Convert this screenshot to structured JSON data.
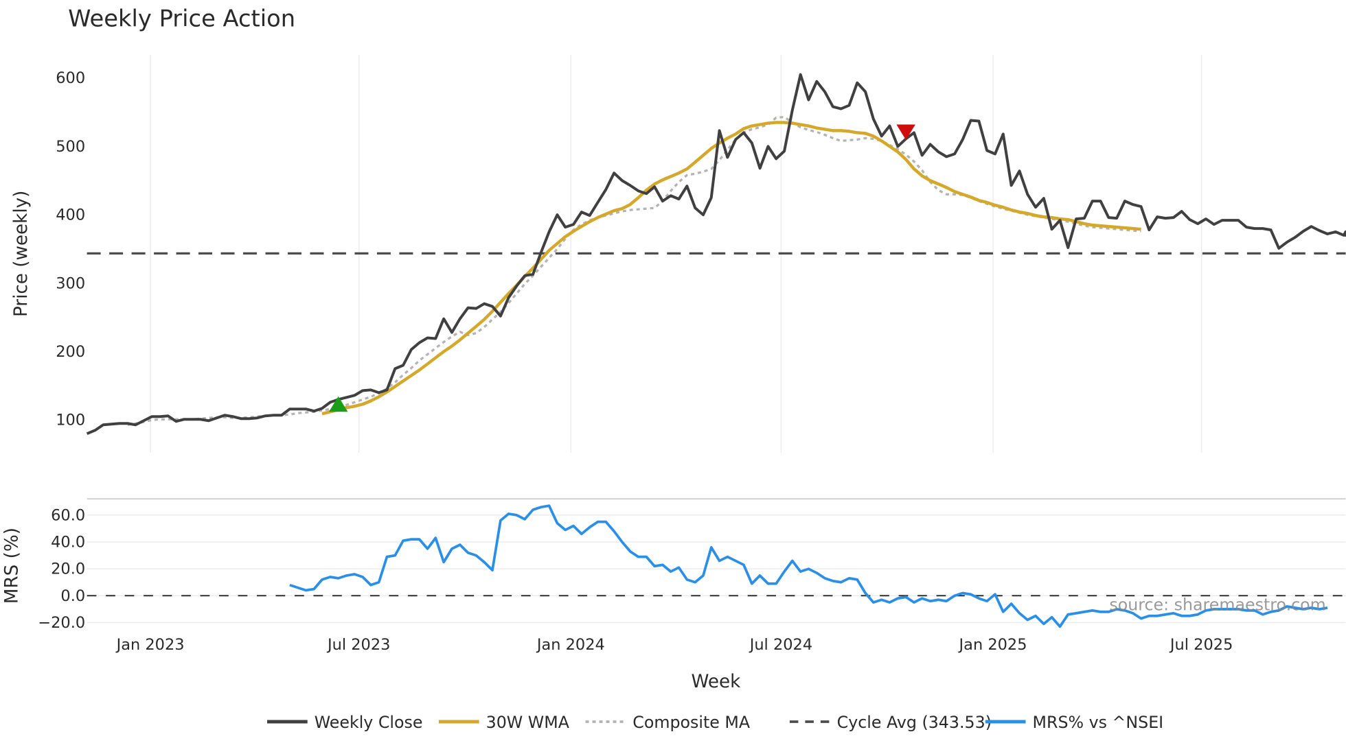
{
  "chart_data": {
    "type": "line",
    "title": "Weekly Price Action",
    "xlabel": "Week",
    "panels": [
      {
        "name": "price",
        "ylabel": "Price (weekly)",
        "ylim": [
          55,
          630
        ],
        "yticks": [
          100,
          200,
          300,
          400,
          500,
          600
        ],
        "grid": "vertical"
      },
      {
        "name": "mrs",
        "ylabel": "MRS (%)",
        "ylim": [
          -25,
          72
        ],
        "yticks": [
          -20.0,
          0.0,
          20.0,
          40.0,
          60.0
        ],
        "ytick_labels": [
          "−20.0",
          "0.0",
          "20.0",
          "40.0",
          "60.0"
        ],
        "grid": "horizontal"
      }
    ],
    "xtick_labels": [
      "Jan 2023",
      "Jul 2023",
      "Jan 2024",
      "Jul 2024",
      "Jan 2025",
      "Jul 2025"
    ],
    "x_start": "2022-11",
    "x_end": "2025-11",
    "legend_position": "bottom",
    "series": [
      {
        "name": "Weekly Close",
        "color": "#404040",
        "style": "solid",
        "panel": "price",
        "start_week": 0,
        "values": [
          80,
          85,
          93,
          94,
          95,
          95,
          93,
          99,
          105,
          105,
          106,
          98,
          101,
          101,
          101,
          99,
          103,
          107,
          105,
          102,
          102,
          103,
          106,
          107,
          107,
          116,
          116,
          116,
          113,
          117,
          126,
          130,
          133,
          136,
          143,
          144,
          140,
          144,
          175,
          180,
          203,
          213,
          220,
          219,
          248,
          228,
          248,
          264,
          263,
          270,
          266,
          252,
          279,
          296,
          311,
          313,
          345,
          375,
          400,
          382,
          386,
          404,
          399,
          418,
          437,
          461,
          450,
          443,
          435,
          431,
          441,
          420,
          428,
          423,
          442,
          410,
          400,
          425,
          523,
          484,
          510,
          520,
          505,
          468,
          500,
          482,
          493,
          553,
          605,
          568,
          595,
          580,
          558,
          555,
          560,
          593,
          580,
          540,
          515,
          530,
          500,
          511,
          520,
          487,
          503,
          492,
          485,
          489,
          510,
          538,
          537,
          494,
          489,
          518,
          443,
          464,
          430,
          411,
          424,
          379,
          392,
          352,
          394,
          395,
          420,
          420,
          396,
          395,
          420,
          415,
          412,
          378,
          397,
          395,
          396,
          405,
          393,
          387,
          394,
          386,
          392,
          392,
          392,
          382,
          380,
          380,
          378,
          351,
          360,
          367,
          376,
          383,
          377,
          372,
          375,
          370,
          375,
          370,
          370,
          372
        ]
      },
      {
        "name": "30W WMA",
        "color": "#D4A82A",
        "style": "solid",
        "panel": "price",
        "start_week": 29,
        "values": [
          109,
          112,
          115,
          118,
          120,
          123,
          128,
          134,
          141,
          149,
          157,
          165,
          173,
          182,
          191,
          200,
          208,
          217,
          227,
          237,
          247,
          259,
          272,
          285,
          297,
          310,
          322,
          335,
          348,
          358,
          368,
          376,
          383,
          390,
          396,
          401,
          406,
          409,
          415,
          425,
          436,
          445,
          451,
          456,
          461,
          467,
          477,
          487,
          497,
          505,
          512,
          518,
          526,
          530,
          532,
          534,
          535,
          535,
          534,
          532,
          530,
          527,
          525,
          523,
          523,
          522,
          520,
          519,
          515,
          508,
          500,
          492,
          481,
          467,
          457,
          450,
          445,
          440,
          434,
          430,
          426,
          421,
          418,
          414,
          411,
          407,
          404,
          402,
          399,
          397,
          396,
          394,
          393,
          390,
          387,
          385,
          384,
          383,
          382,
          381,
          380,
          379
        ]
      },
      {
        "name": "Composite MA",
        "color": "#b3b3b3",
        "style": "dotted",
        "panel": "price",
        "start_week": 5,
        "values": [
          93,
          95,
          97,
          100,
          101,
          101,
          101,
          101,
          101,
          102,
          103,
          104,
          104,
          103,
          103,
          104,
          105,
          106,
          107,
          107,
          108,
          110,
          111,
          112,
          114,
          116,
          119,
          122,
          126,
          130,
          134,
          139,
          146,
          155,
          166,
          176,
          187,
          196,
          205,
          214,
          222,
          229,
          224,
          227,
          236,
          247,
          258,
          271,
          285,
          299,
          311,
          324,
          337,
          350,
          365,
          378,
          386,
          392,
          396,
          399,
          402,
          405,
          407,
          408,
          409,
          410,
          420,
          435,
          448,
          458,
          460,
          463,
          467,
          480,
          495,
          510,
          520,
          525,
          528,
          532,
          542,
          543,
          535,
          528,
          524,
          521,
          517,
          512,
          508,
          509,
          510,
          512,
          511,
          508,
          502,
          496,
          488,
          478,
          465,
          448,
          436,
          430,
          430,
          429,
          425,
          420,
          416,
          412,
          409,
          406,
          403,
          400,
          398,
          396,
          394,
          392,
          390,
          387,
          384,
          382,
          381,
          380,
          379,
          378,
          377,
          376
        ]
      },
      {
        "name": "Cycle Avg (343.53)",
        "color": "#4d4d4d",
        "style": "dashed",
        "panel": "price",
        "value": 343.53
      },
      {
        "name": "MRS% vs ^NSEI",
        "color": "#2B8FE5",
        "style": "solid",
        "panel": "mrs",
        "start_week": 25,
        "values": [
          8,
          6,
          4,
          5,
          12,
          14,
          13,
          15,
          16,
          14,
          8,
          10,
          29,
          30,
          41,
          42,
          42,
          35,
          43,
          25,
          35,
          38,
          32,
          30,
          25,
          19,
          56,
          61,
          60,
          57,
          64,
          66,
          67,
          54,
          49,
          52,
          46,
          51,
          55,
          55,
          48,
          40,
          33,
          29,
          29,
          22,
          23,
          18,
          21,
          12,
          10,
          15,
          36,
          26,
          29,
          26,
          23,
          9,
          15,
          9,
          9,
          18,
          26,
          18,
          20,
          17,
          13,
          11,
          10,
          13,
          12,
          2,
          -5,
          -3,
          -5,
          -2,
          -1,
          -5,
          -2,
          -4,
          -3,
          -4,
          0,
          2,
          1,
          -2,
          -4,
          1,
          -12,
          -6,
          -13,
          -18,
          -15,
          -21,
          -16,
          -23,
          -14,
          -13,
          -12,
          -11,
          -12,
          -12,
          -10,
          -11,
          -13,
          -17,
          -15,
          -15,
          -14,
          -13,
          -15,
          -15,
          -14,
          -11,
          -10,
          -10,
          -10,
          -10,
          -11,
          -11,
          -14,
          -12,
          -11,
          -8,
          -9,
          -10,
          -9,
          -10,
          -9
        ]
      }
    ],
    "markers": [
      {
        "type": "buy",
        "shape": "triangle-up",
        "color": "#1a9e1a",
        "week": 31,
        "price": 122
      },
      {
        "type": "sell",
        "shape": "triangle-down",
        "color": "#d10c0c",
        "week": 101,
        "price": 522
      }
    ],
    "annotations": [
      "source: sharemaestro.com"
    ]
  },
  "labels": {
    "title": "Weekly Price Action",
    "price_ylabel": "Price (weekly)",
    "mrs_ylabel": "MRS (%)",
    "xlabel": "Week",
    "source": "source: sharemaestro.com",
    "legend": [
      "Weekly Close",
      "30W WMA",
      "Composite MA",
      "Cycle Avg (343.53)",
      "MRS% vs ^NSEI"
    ]
  }
}
